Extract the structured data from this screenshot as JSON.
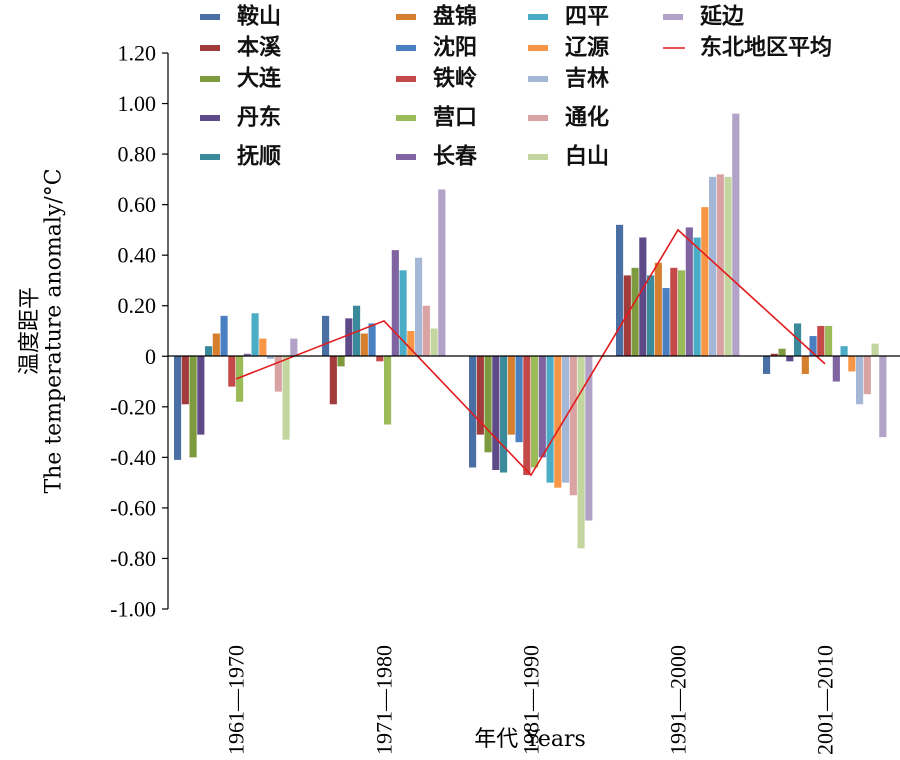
{
  "chart_data": {
    "type": "bar",
    "title": "",
    "xlabel": "年代 Years",
    "ylabel_cn": "温度距平",
    "ylabel_en": "The temperature anomaly/°C",
    "ylim": [
      -1.0,
      1.2
    ],
    "yticks": [
      "1.20",
      "1.00",
      "0.80",
      "0.60",
      "0.40",
      "0.20",
      "0",
      "-0.20",
      "-0.40",
      "-0.60",
      "-0.80",
      "-1.00"
    ],
    "ytick_values": [
      1.2,
      1.0,
      0.8,
      0.6,
      0.4,
      0.2,
      0,
      -0.2,
      -0.4,
      -0.6,
      -0.8,
      -1.0
    ],
    "categories": [
      "1961—1970",
      "1971—1980",
      "1981—1990",
      "1991—2000",
      "2001—2010"
    ],
    "grid": false,
    "legend_position": "top",
    "series": [
      {
        "name": "鞍山",
        "color": "#4a6fa5",
        "values": [
          -0.41,
          0.16,
          -0.44,
          0.52,
          -0.07
        ]
      },
      {
        "name": "本溪",
        "color": "#a23b3b",
        "values": [
          -0.19,
          -0.19,
          -0.31,
          0.32,
          0.01
        ]
      },
      {
        "name": "大连",
        "color": "#7d9a3e",
        "values": [
          -0.4,
          -0.04,
          -0.38,
          0.35,
          0.03
        ]
      },
      {
        "name": "丹东",
        "color": "#5e4a88",
        "values": [
          -0.31,
          0.15,
          -0.45,
          0.47,
          -0.02
        ]
      },
      {
        "name": "抚顺",
        "color": "#3a8a9c",
        "values": [
          0.04,
          0.2,
          -0.46,
          0.32,
          0.13
        ]
      },
      {
        "name": "盘锦",
        "color": "#d67f2f",
        "values": [
          0.09,
          0.09,
          -0.31,
          0.37,
          -0.07
        ]
      },
      {
        "name": "沈阳",
        "color": "#4a7fc1",
        "values": [
          0.16,
          0.13,
          -0.34,
          0.27,
          0.08
        ]
      },
      {
        "name": "铁岭",
        "color": "#c44a4a",
        "values": [
          -0.12,
          -0.02,
          -0.47,
          0.35,
          0.12
        ]
      },
      {
        "name": "营口",
        "color": "#9bbb59",
        "values": [
          -0.18,
          -0.27,
          -0.44,
          0.34,
          0.12
        ]
      },
      {
        "name": "长春",
        "color": "#8064a2",
        "values": [
          0.01,
          0.42,
          -0.4,
          0.51,
          -0.1
        ]
      },
      {
        "name": "四平",
        "color": "#4bacc6",
        "values": [
          0.17,
          0.34,
          -0.5,
          0.47,
          0.04
        ]
      },
      {
        "name": "辽源",
        "color": "#f79646",
        "values": [
          0.07,
          0.1,
          -0.52,
          0.59,
          -0.06
        ]
      },
      {
        "name": "吉林",
        "color": "#a5b7d6",
        "values": [
          -0.01,
          0.39,
          -0.5,
          0.71,
          -0.19
        ]
      },
      {
        "name": "通化",
        "color": "#d9a3a3",
        "values": [
          -0.14,
          0.2,
          -0.55,
          0.72,
          -0.15
        ]
      },
      {
        "name": "白山",
        "color": "#c4d6a0",
        "values": [
          -0.33,
          0.11,
          -0.76,
          0.71,
          0.05
        ]
      },
      {
        "name": "延边",
        "color": "#b3a2c7",
        "values": [
          0.07,
          0.66,
          -0.65,
          0.96,
          -0.32
        ]
      }
    ],
    "line_series": {
      "name": "东北地区平均",
      "color": "#e31a1c",
      "values": [
        -0.09,
        0.14,
        -0.47,
        0.5,
        -0.03
      ]
    }
  }
}
